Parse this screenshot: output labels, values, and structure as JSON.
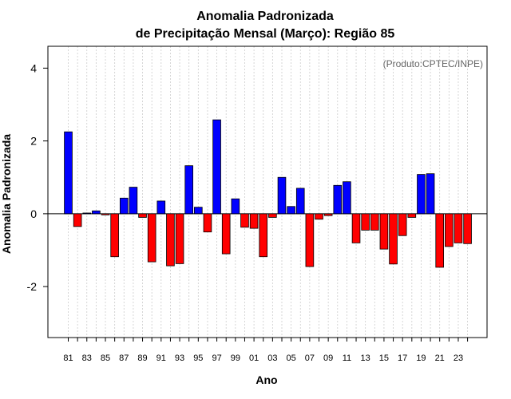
{
  "chart_data": {
    "type": "bar",
    "title": "Anomalia Padronizada",
    "subtitle": "de Precipitação Mensal (Março): Região 85",
    "xlabel": "Ano",
    "ylabel": "Anomalia Padronizada",
    "credit": "(Produto:CPTEC/INPE)",
    "ylim": [
      -3.4,
      4.6
    ],
    "yticks": [
      4,
      2,
      0,
      -2
    ],
    "ytick_labels": [
      "4",
      "2",
      "0",
      "-2"
    ],
    "categories": [
      "81",
      "82",
      "83",
      "84",
      "85",
      "86",
      "87",
      "88",
      "89",
      "90",
      "91",
      "92",
      "93",
      "94",
      "95",
      "96",
      "97",
      "98",
      "99",
      "00",
      "01",
      "02",
      "03",
      "04",
      "05",
      "06",
      "07",
      "08",
      "09",
      "10",
      "11",
      "12",
      "13",
      "14",
      "15",
      "16",
      "17",
      "18",
      "19",
      "20",
      "21",
      "22",
      "23",
      "24"
    ],
    "xtick_labels": [
      "81",
      "83",
      "85",
      "87",
      "89",
      "91",
      "93",
      "95",
      "97",
      "99",
      "01",
      "03",
      "05",
      "07",
      "09",
      "11",
      "13",
      "15",
      "17",
      "19",
      "21",
      "23"
    ],
    "values": [
      2.25,
      -0.35,
      0.02,
      0.08,
      -0.03,
      -1.18,
      0.43,
      0.73,
      -0.1,
      -1.32,
      0.35,
      -1.43,
      -1.37,
      1.32,
      0.18,
      -0.5,
      2.58,
      -1.1,
      0.41,
      -0.37,
      -0.4,
      -1.18,
      -0.1,
      1.0,
      0.2,
      0.7,
      -1.45,
      -0.15,
      -0.05,
      0.78,
      0.88,
      -0.8,
      -0.45,
      -0.45,
      -0.97,
      -1.38,
      -0.6,
      -0.1,
      1.08,
      1.1,
      -1.47,
      -0.9,
      -0.8,
      -0.82
    ],
    "positive_color": "#0000ff",
    "negative_color": "#ff0000",
    "grid": true
  }
}
